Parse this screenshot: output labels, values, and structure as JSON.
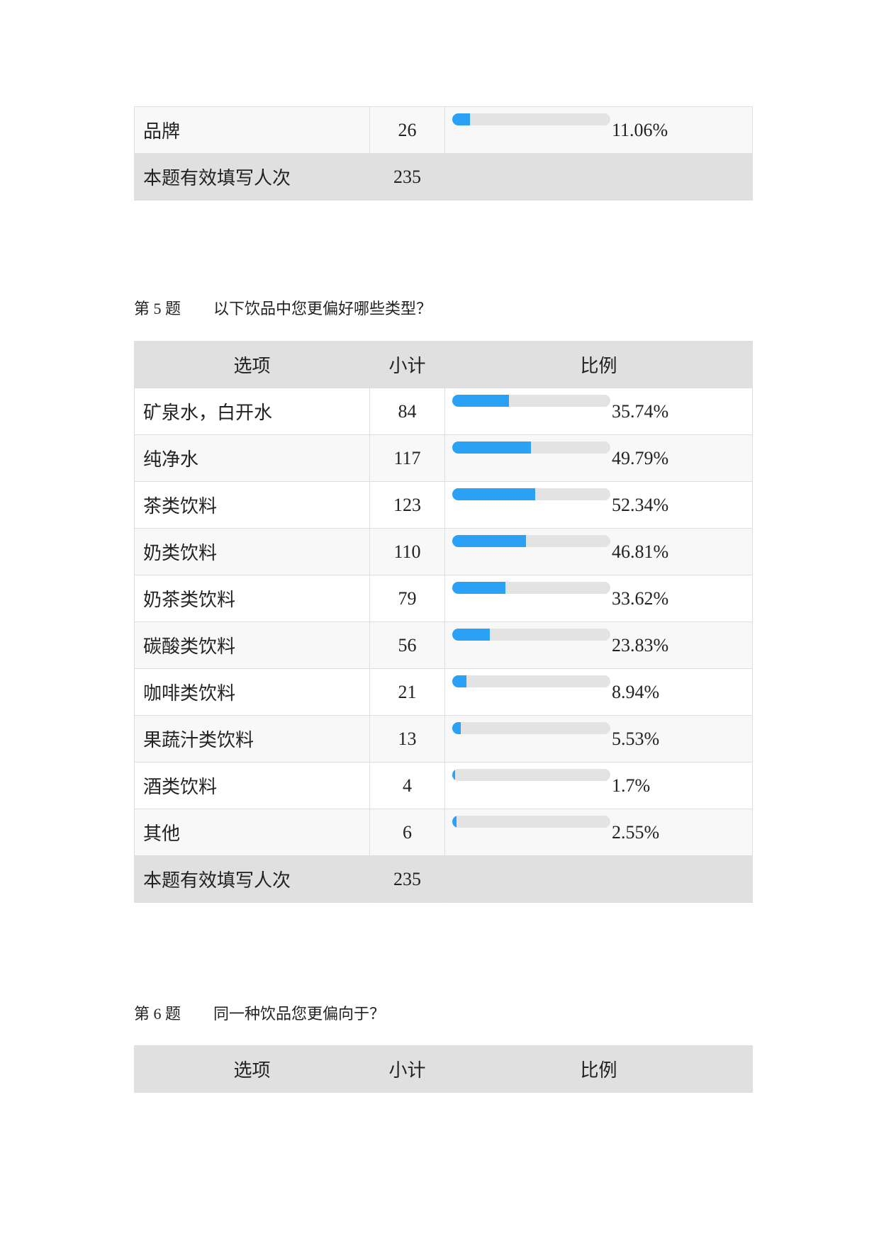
{
  "table_top": {
    "rows": [
      {
        "option": "品牌",
        "count": "26",
        "percent": "11.06%",
        "fraction": 0.1106
      }
    ],
    "total": {
      "label": "本题有效填写人次",
      "count": "235"
    }
  },
  "q5": {
    "number": "第 5 题",
    "text": "以下饮品中您更偏好哪些类型？",
    "headers": {
      "option": "选项",
      "count": "小计",
      "percent": "比例"
    },
    "rows": [
      {
        "option": "矿泉水，白开水",
        "count": "84",
        "percent": "35.74%",
        "fraction": 0.3574
      },
      {
        "option": "纯净水",
        "count": "117",
        "percent": "49.79%",
        "fraction": 0.4979
      },
      {
        "option": "茶类饮料",
        "count": "123",
        "percent": "52.34%",
        "fraction": 0.5234
      },
      {
        "option": "奶类饮料",
        "count": "110",
        "percent": "46.81%",
        "fraction": 0.4681
      },
      {
        "option": "奶茶类饮料",
        "count": "79",
        "percent": "33.62%",
        "fraction": 0.3362
      },
      {
        "option": "碳酸类饮料",
        "count": "56",
        "percent": "23.83%",
        "fraction": 0.2383
      },
      {
        "option": "咖啡类饮料",
        "count": "21",
        "percent": "8.94%",
        "fraction": 0.0894
      },
      {
        "option": "果蔬汁类饮料",
        "count": "13",
        "percent": "5.53%",
        "fraction": 0.0553
      },
      {
        "option": "酒类饮料",
        "count": "4",
        "percent": "1.7%",
        "fraction": 0.017
      },
      {
        "option": "其他",
        "count": "6",
        "percent": "2.55%",
        "fraction": 0.0255
      }
    ],
    "total": {
      "label": "本题有效填写人次",
      "count": "235"
    }
  },
  "q6": {
    "number": "第 6 题",
    "text": "同一种饮品您更偏向于？",
    "headers": {
      "option": "选项",
      "count": "小计",
      "percent": "比例"
    }
  },
  "colors": {
    "bar_fill": "#2aa1f5",
    "bar_track": "#e3e3e3",
    "header_bg": "#e0e0e0"
  }
}
